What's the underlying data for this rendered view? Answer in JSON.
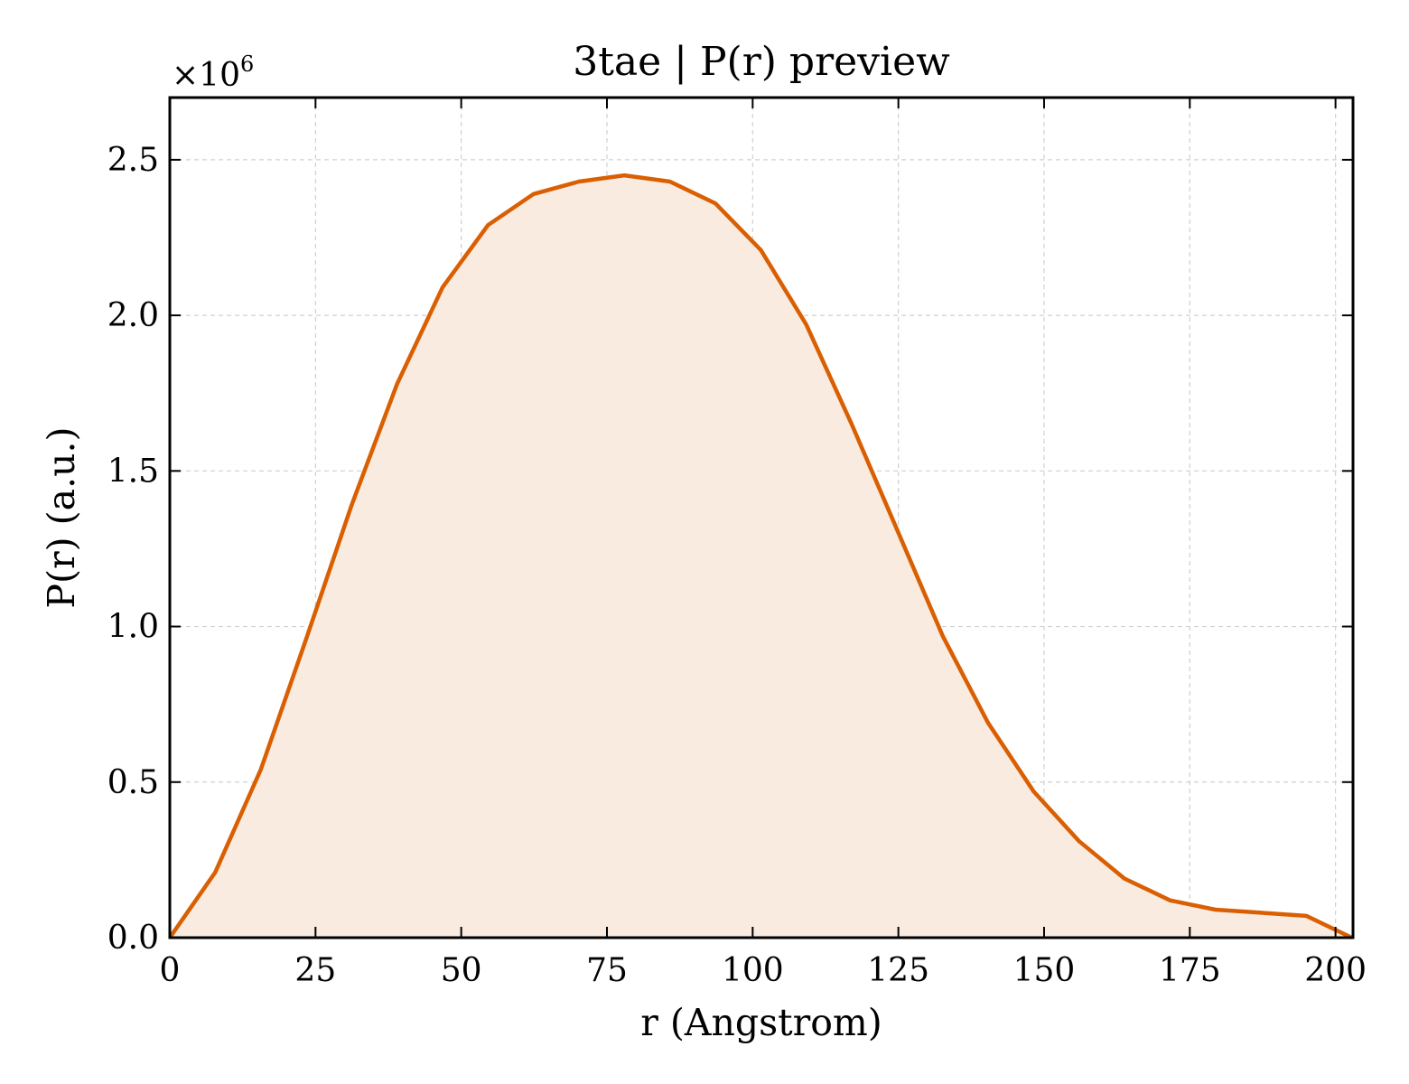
{
  "chart_data": {
    "type": "area",
    "title": "3tae | P(r) preview",
    "xlabel": "r (Angstrom)",
    "ylabel": "P(r) (a.u.)",
    "y_multiplier_label": "×10",
    "y_multiplier_exponent": "6",
    "xlim": [
      0,
      203
    ],
    "ylim": [
      0,
      2.7
    ],
    "xticks": [
      0,
      25,
      50,
      75,
      100,
      125,
      150,
      175,
      200
    ],
    "xtick_labels": [
      "0",
      "25",
      "50",
      "75",
      "100",
      "125",
      "150",
      "175",
      "200"
    ],
    "yticks": [
      0.0,
      0.5,
      1.0,
      1.5,
      2.0,
      2.5
    ],
    "ytick_labels": [
      "0.0",
      "0.5",
      "1.0",
      "1.5",
      "2.0",
      "2.5"
    ],
    "grid": true,
    "color": "#d95f02",
    "fill_color": "#f9ebe0",
    "series": [
      {
        "x": [
          0,
          7.8,
          15.6,
          23.4,
          31.2,
          39.0,
          46.8,
          54.6,
          62.4,
          70.2,
          78.0,
          85.8,
          93.6,
          101.4,
          109.2,
          117.0,
          124.8,
          132.6,
          140.4,
          148.2,
          156.0,
          163.8,
          171.6,
          179.4,
          187.2,
          195.0,
          202.8
        ],
        "values": [
          0.0,
          0.21,
          0.54,
          0.96,
          1.39,
          1.78,
          2.09,
          2.29,
          2.39,
          2.43,
          2.45,
          2.43,
          2.36,
          2.21,
          1.97,
          1.65,
          1.31,
          0.97,
          0.69,
          0.47,
          0.31,
          0.19,
          0.12,
          0.09,
          0.08,
          0.07,
          0.0
        ]
      }
    ]
  }
}
